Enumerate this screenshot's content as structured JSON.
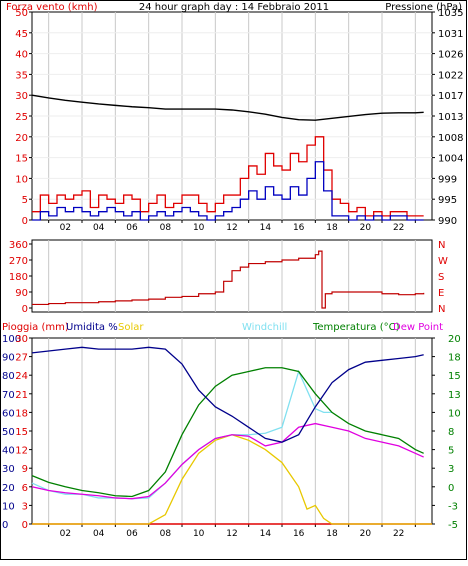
{
  "chart_data": [
    {
      "type": "line",
      "title": "24 hour graph day : 14 Febbraio 2011",
      "ylabel": "Forza vento (kmh)",
      "y2label": "Pressione (hPa)",
      "ylim": [
        0,
        50
      ],
      "yticks": [
        "0",
        "5",
        "10",
        "15",
        "20",
        "25",
        "30",
        "35",
        "40",
        "45",
        "50"
      ],
      "y2lim": [
        990,
        1035
      ],
      "y2ticks": [
        "990",
        "995",
        "999",
        "1004",
        "1008",
        "1013",
        "1017",
        "1022",
        "1026",
        "1031",
        "1035"
      ],
      "xlim": [
        0,
        24
      ],
      "xticks": [
        "02",
        "04",
        "06",
        "08",
        "10",
        "12",
        "14",
        "16",
        "18",
        "20",
        "22",
        ""
      ],
      "colors": {
        "gust": "#e00000",
        "wind": "#0000c0",
        "pressure": "#000000"
      },
      "series": [
        {
          "key": "pressure",
          "axis": "right",
          "x": [
            0,
            1,
            2,
            3,
            4,
            5,
            6,
            7,
            8,
            9,
            10,
            11,
            12,
            13,
            14,
            15,
            16,
            17,
            18,
            19,
            20,
            21,
            22,
            23,
            23.5
          ],
          "values": [
            1017.0,
            1016.4,
            1015.9,
            1015.5,
            1015.1,
            1014.8,
            1014.5,
            1014.3,
            1014.0,
            1014.0,
            1014.0,
            1014.0,
            1013.8,
            1013.4,
            1012.9,
            1012.2,
            1011.7,
            1011.6,
            1012.0,
            1012.4,
            1012.8,
            1013.1,
            1013.2,
            1013.2,
            1013.3
          ]
        },
        {
          "key": "gust",
          "axis": "left",
          "x": [
            0,
            0.5,
            1,
            1.5,
            2,
            2.5,
            3,
            3.5,
            4,
            4.5,
            5,
            5.5,
            6,
            6.5,
            7,
            7.5,
            8,
            8.5,
            9,
            9.5,
            10,
            10.5,
            11,
            11.5,
            12,
            12.5,
            13,
            13.5,
            14,
            14.5,
            15,
            15.5,
            16,
            16.5,
            17,
            17.5,
            18,
            18.5,
            19,
            19.5,
            20,
            20.5,
            21,
            21.5,
            22,
            22.5,
            23,
            23.5
          ],
          "values": [
            2,
            6,
            4,
            6,
            5,
            6,
            7,
            3,
            6,
            5,
            4,
            6,
            5,
            2,
            4,
            6,
            3,
            4,
            6,
            6,
            4,
            2,
            4,
            6,
            6,
            10,
            13,
            11,
            16,
            13,
            12,
            16,
            14,
            18,
            20,
            12,
            5,
            4,
            2,
            3,
            1,
            2,
            1,
            2,
            2,
            1,
            1,
            1
          ]
        },
        {
          "key": "wind",
          "axis": "left",
          "x": [
            0,
            0.5,
            1,
            1.5,
            2,
            2.5,
            3,
            3.5,
            4,
            4.5,
            5,
            5.5,
            6,
            6.5,
            7,
            7.5,
            8,
            8.5,
            9,
            9.5,
            10,
            10.5,
            11,
            11.5,
            12,
            12.5,
            13,
            13.5,
            14,
            14.5,
            15,
            15.5,
            16,
            16.5,
            17,
            17.5,
            18,
            18.5,
            19,
            19.5,
            20,
            20.5,
            21,
            21.5,
            22,
            22.5,
            23,
            23.5
          ],
          "values": [
            0,
            2,
            1,
            3,
            2,
            3,
            2,
            1,
            2,
            3,
            2,
            1,
            2,
            0,
            1,
            2,
            1,
            2,
            3,
            2,
            1,
            0,
            1,
            2,
            3,
            5,
            7,
            5,
            8,
            6,
            5,
            8,
            6,
            10,
            14,
            7,
            1,
            1,
            0,
            1,
            0,
            1,
            0,
            1,
            1,
            0,
            0,
            0
          ]
        }
      ]
    },
    {
      "type": "line",
      "ylim": [
        0,
        360
      ],
      "yticks": [
        "0",
        "90",
        "180",
        "270",
        "360"
      ],
      "y2ticks": [
        "N",
        "E",
        "S",
        "W",
        "N"
      ],
      "xlim": [
        0,
        24
      ],
      "colors": {
        "direction": "#c00000"
      },
      "series": [
        {
          "key": "direction",
          "x": [
            0,
            1,
            2,
            3,
            4,
            5,
            6,
            7,
            8,
            9,
            10,
            11,
            11.5,
            12,
            12.5,
            13,
            14,
            15,
            16,
            17,
            17.2,
            17.4,
            17.6,
            18,
            19,
            20,
            21,
            22,
            23,
            23.5
          ],
          "values": [
            20,
            25,
            30,
            30,
            35,
            40,
            45,
            50,
            60,
            65,
            80,
            90,
            150,
            210,
            230,
            250,
            260,
            270,
            280,
            300,
            320,
            0,
            80,
            90,
            90,
            90,
            80,
            75,
            80,
            85
          ]
        }
      ]
    },
    {
      "type": "line",
      "legend": [
        "Pioggia (mm)",
        "Umidita %",
        "Solar",
        "Windchill",
        "Temperatura (°C)",
        "Dew Point"
      ],
      "ylim": [
        0,
        100
      ],
      "yticks": [
        "0",
        "10",
        "20",
        "30",
        "40",
        "50",
        "60",
        "70",
        "80",
        "90",
        "100"
      ],
      "ylim_alt": [
        0,
        30
      ],
      "yticks_alt": [
        "0",
        "3",
        "6",
        "9",
        "12",
        "15",
        "18",
        "21",
        "24",
        "27",
        "30"
      ],
      "y2lim": [
        -5,
        20
      ],
      "y2ticks": [
        "-5",
        "-3",
        "0",
        "3",
        "5",
        "8",
        "10",
        "13",
        "15",
        "18",
        "20"
      ],
      "xlim": [
        0,
        24
      ],
      "xticks": [
        "02",
        "04",
        "06",
        "08",
        "10",
        "12",
        "14",
        "16",
        "18",
        "20",
        "22",
        ""
      ],
      "colors": {
        "rain": "#e00000",
        "humidity": "#00008b",
        "solar": "#e8c800",
        "windchill": "#80e0f0",
        "temperature": "#008000",
        "dew_point": "#e000e0"
      },
      "series": [
        {
          "key": "rain",
          "axis": "left",
          "x": [
            0,
            24
          ],
          "values": [
            0,
            0
          ]
        },
        {
          "key": "humidity",
          "axis": "left",
          "x": [
            0,
            1,
            2,
            3,
            4,
            5,
            6,
            7,
            8,
            9,
            10,
            11,
            12,
            13,
            14,
            15,
            16,
            17,
            18,
            19,
            20,
            21,
            22,
            23,
            23.5
          ],
          "values": [
            92,
            93,
            94,
            95,
            94,
            94,
            94,
            95,
            94,
            86,
            72,
            63,
            58,
            52,
            46,
            44,
            48,
            63,
            76,
            83,
            87,
            88,
            89,
            90,
            91
          ]
        },
        {
          "key": "solar",
          "axis": "left",
          "x": [
            0,
            7,
            8,
            9,
            10,
            11,
            12,
            13,
            14,
            15,
            16,
            16.5,
            17,
            17.5,
            18,
            24
          ],
          "values": [
            0,
            0,
            5,
            24,
            38,
            45,
            48,
            45,
            40,
            33,
            20,
            8,
            10,
            3,
            0,
            0
          ]
        },
        {
          "key": "windchill",
          "axis": "right",
          "x": [
            0,
            1,
            2,
            3,
            4,
            5,
            6,
            7,
            8,
            9,
            10,
            11,
            12,
            13,
            14,
            15,
            16,
            17,
            17.5,
            18
          ],
          "values": [
            0.5,
            -0.5,
            -1,
            -1,
            -1.5,
            -1.5,
            -1.6,
            -1.5,
            0.5,
            3,
            5,
            6.5,
            7.0,
            7.0,
            7.2,
            8.0,
            15.5,
            10.5,
            10.0,
            10.0
          ]
        },
        {
          "key": "temperature",
          "axis": "right",
          "x": [
            0,
            1,
            2,
            3,
            4,
            5,
            6,
            7,
            8,
            9,
            10,
            11,
            12,
            13,
            14,
            15,
            16,
            17,
            18,
            19,
            20,
            21,
            22,
            23,
            23.5
          ],
          "values": [
            1.5,
            0.6,
            0,
            -0.5,
            -0.8,
            -1.2,
            -1.3,
            -0.5,
            2,
            7,
            11,
            13.5,
            15,
            15.5,
            16,
            16,
            15.5,
            12.5,
            10,
            8.5,
            7.5,
            7,
            6.5,
            5,
            4.5
          ]
        },
        {
          "key": "dew_point",
          "axis": "right",
          "x": [
            0,
            1,
            2,
            3,
            4,
            5,
            6,
            7,
            8,
            9,
            10,
            11,
            12,
            13,
            14,
            15,
            16,
            17,
            18,
            19,
            20,
            21,
            22,
            23,
            23.5
          ],
          "values": [
            0,
            -0.5,
            -0.8,
            -1,
            -1.2,
            -1.5,
            -1.6,
            -1.3,
            0.5,
            3,
            5,
            6.5,
            7,
            6.8,
            5.5,
            6,
            8,
            8.5,
            8,
            7.5,
            6.5,
            6,
            5.5,
            4.5,
            4
          ]
        }
      ]
    }
  ]
}
